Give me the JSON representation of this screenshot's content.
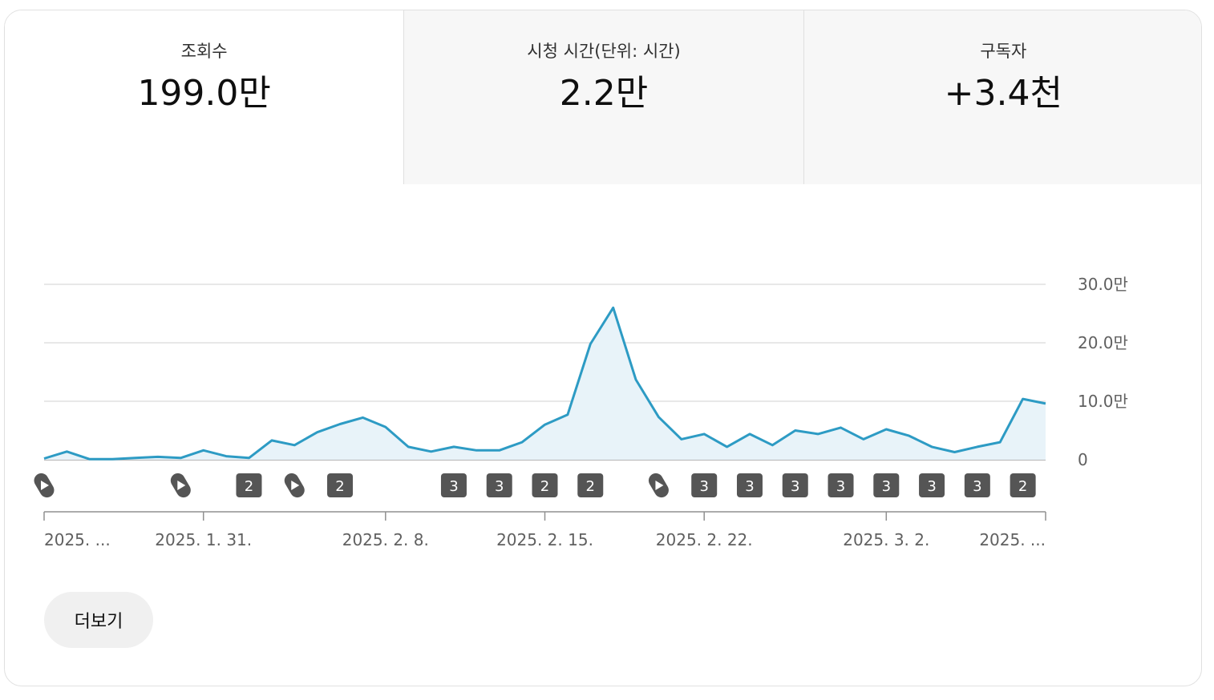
{
  "tabs": [
    {
      "label": "조회수",
      "value": "199.0만",
      "active": true
    },
    {
      "label": "시청 시간(단위: 시간)",
      "value": "2.2만",
      "active": false
    },
    {
      "label": "구독자",
      "value": "+3.4천",
      "active": false
    }
  ],
  "more_button": {
    "label": "더보기"
  },
  "colors": {
    "line": "#2d9bc4",
    "fill": "#e8f3f9",
    "grid": "#e0e0e0",
    "axis": "#909090",
    "marker": "#555555"
  },
  "chart_data": {
    "type": "area",
    "ylim": [
      0,
      300000
    ],
    "y_ticks": [
      {
        "value": 0,
        "label": "0"
      },
      {
        "value": 100000,
        "label": "10.0만"
      },
      {
        "value": 200000,
        "label": "20.0만"
      },
      {
        "value": 300000,
        "label": "30.0만"
      }
    ],
    "x_labels": [
      {
        "day": 0,
        "label": "2025. ..."
      },
      {
        "day": 7,
        "label": "2025. 1. 31."
      },
      {
        "day": 15,
        "label": "2025. 2. 8."
      },
      {
        "day": 22,
        "label": "2025. 2. 15."
      },
      {
        "day": 29,
        "label": "2025. 2. 22."
      },
      {
        "day": 37,
        "label": "2025. 3. 2."
      },
      {
        "day": 44,
        "label": "2025. ..."
      }
    ],
    "values": [
      2000,
      14000,
      1000,
      1000,
      3000,
      5000,
      3000,
      16000,
      6000,
      3000,
      33000,
      25000,
      47000,
      61000,
      72000,
      56000,
      22000,
      14000,
      22000,
      16000,
      16000,
      30000,
      60000,
      77000,
      198000,
      260000,
      137000,
      73000,
      35000,
      44000,
      22000,
      44000,
      25000,
      50000,
      44000,
      55000,
      35000,
      52000,
      41000,
      22000,
      13000,
      22000,
      30000,
      104000,
      96000
    ],
    "markers": [
      {
        "day": 0,
        "kind": "shorts",
        "label": ""
      },
      {
        "day": 6,
        "kind": "shorts",
        "label": ""
      },
      {
        "day": 9,
        "kind": "count",
        "label": "2"
      },
      {
        "day": 11,
        "kind": "shorts",
        "label": ""
      },
      {
        "day": 13,
        "kind": "count",
        "label": "2"
      },
      {
        "day": 18,
        "kind": "count",
        "label": "3"
      },
      {
        "day": 20,
        "kind": "count",
        "label": "3"
      },
      {
        "day": 22,
        "kind": "count",
        "label": "2"
      },
      {
        "day": 24,
        "kind": "count",
        "label": "2"
      },
      {
        "day": 27,
        "kind": "shorts",
        "label": ""
      },
      {
        "day": 29,
        "kind": "count",
        "label": "3"
      },
      {
        "day": 31,
        "kind": "count",
        "label": "3"
      },
      {
        "day": 33,
        "kind": "count",
        "label": "3"
      },
      {
        "day": 35,
        "kind": "count",
        "label": "3"
      },
      {
        "day": 37,
        "kind": "count",
        "label": "3"
      },
      {
        "day": 39,
        "kind": "count",
        "label": "3"
      },
      {
        "day": 41,
        "kind": "count",
        "label": "3"
      },
      {
        "day": 43,
        "kind": "count",
        "label": "2"
      }
    ]
  }
}
